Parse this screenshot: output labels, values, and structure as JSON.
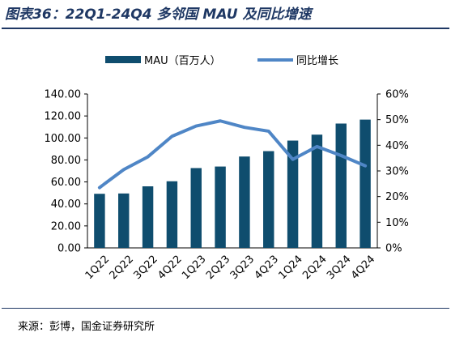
{
  "figure": {
    "title": "图表36：22Q1-24Q4 多邻国 MAU 及同比增速",
    "source": "来源：彭博，国金证券研究所"
  },
  "colors": {
    "bar": "#0f4d6e",
    "line": "#4f86c6",
    "title": "#1f3864"
  },
  "chart_data": {
    "type": "bar",
    "categories": [
      "1Q22",
      "2Q22",
      "3Q22",
      "4Q22",
      "1Q23",
      "2Q23",
      "3Q23",
      "4Q23",
      "1Q24",
      "2Q24",
      "3Q24",
      "4Q24"
    ],
    "series": [
      {
        "name": "MAU（百万人）",
        "type": "bar",
        "axis": "left",
        "values": [
          49.2,
          49.5,
          56.0,
          60.6,
          72.6,
          74.0,
          83.1,
          88.0,
          97.6,
          103.0,
          113.1,
          116.7
        ]
      },
      {
        "name": "同比增长",
        "type": "line",
        "axis": "right",
        "values": [
          0.235,
          0.305,
          0.355,
          0.435,
          0.475,
          0.495,
          0.47,
          0.455,
          0.345,
          0.395,
          0.36,
          0.32
        ]
      }
    ],
    "y_left": {
      "ylim": [
        0,
        140
      ],
      "ticks": [
        "0.00",
        "20.00",
        "40.00",
        "60.00",
        "80.00",
        "100.00",
        "120.00",
        "140.00"
      ]
    },
    "y_right": {
      "ylim": [
        0,
        0.6
      ],
      "ticks": [
        "0%",
        "10%",
        "20%",
        "30%",
        "40%",
        "50%",
        "60%"
      ]
    },
    "legend": "top",
    "grid": false
  }
}
